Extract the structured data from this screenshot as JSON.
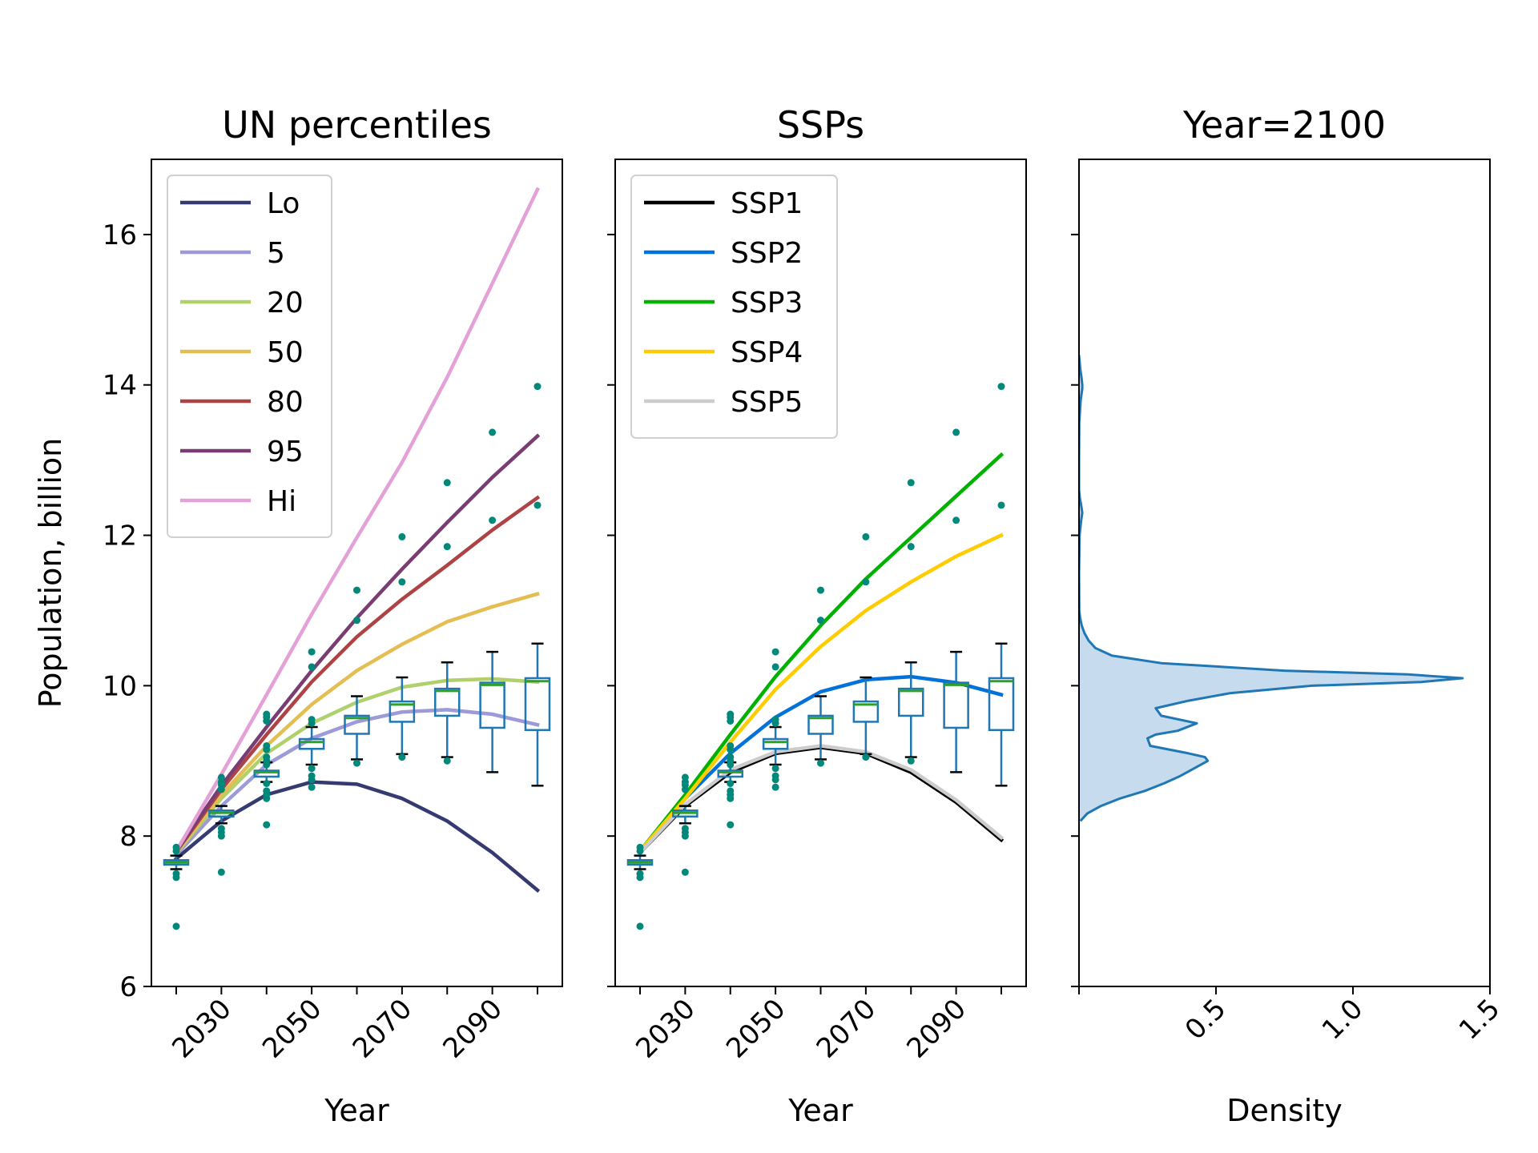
{
  "chart_data": [
    {
      "type": "line",
      "title": "UN percentiles",
      "xlabel": "Year",
      "ylabel": "Population, billion",
      "xlim": [
        2014.5,
        2105.5
      ],
      "ylim": [
        6,
        17
      ],
      "xticks": [
        2030,
        2050,
        2070,
        2090
      ],
      "yticks": [
        6,
        8,
        10,
        12,
        14,
        16
      ],
      "legend_position": "upper left",
      "x": [
        2020,
        2030,
        2040,
        2050,
        2060,
        2070,
        2080,
        2090,
        2100
      ],
      "series": [
        {
          "name": "Lo",
          "color": "#353a70",
          "values": [
            7.7,
            8.2,
            8.55,
            8.72,
            8.69,
            8.5,
            8.2,
            7.78,
            7.28
          ]
        },
        {
          "name": "5",
          "color": "#9c9ad8",
          "values": [
            7.75,
            8.4,
            8.95,
            9.3,
            9.52,
            9.65,
            9.68,
            9.62,
            9.48
          ]
        },
        {
          "name": "20",
          "color": "#b0d06c",
          "values": [
            7.77,
            8.5,
            9.1,
            9.5,
            9.78,
            9.98,
            10.07,
            10.09,
            10.05
          ]
        },
        {
          "name": "50",
          "color": "#e4be52",
          "values": [
            7.78,
            8.55,
            9.2,
            9.75,
            10.2,
            10.55,
            10.85,
            11.05,
            11.22
          ]
        },
        {
          "name": "80",
          "color": "#ad4344",
          "values": [
            7.79,
            8.62,
            9.35,
            10.05,
            10.65,
            11.15,
            11.6,
            12.07,
            12.5
          ]
        },
        {
          "name": "95",
          "color": "#7a3d73",
          "values": [
            7.8,
            8.67,
            9.45,
            10.2,
            10.9,
            11.55,
            12.17,
            12.77,
            13.32
          ]
        },
        {
          "name": "Hi",
          "color": "#e3a1d8",
          "values": [
            7.8,
            8.82,
            9.88,
            10.95,
            11.97,
            12.97,
            14.1,
            15.35,
            16.6
          ]
        }
      ],
      "boxes": [
        {
          "x": 2020,
          "whislo": 7.56,
          "q1": 7.62,
          "med": 7.65,
          "q3": 7.68,
          "whishi": 7.74
        },
        {
          "x": 2030,
          "whislo": 8.17,
          "q1": 8.26,
          "med": 8.31,
          "q3": 8.34,
          "whishi": 8.4
        },
        {
          "x": 2040,
          "whislo": 8.72,
          "q1": 8.79,
          "med": 8.85,
          "q3": 8.87,
          "whishi": 8.98
        },
        {
          "x": 2050,
          "whislo": 8.95,
          "q1": 9.16,
          "med": 9.25,
          "q3": 9.29,
          "whishi": 9.45
        },
        {
          "x": 2060,
          "whislo": 9.02,
          "q1": 9.36,
          "med": 9.57,
          "q3": 9.6,
          "whishi": 9.86
        },
        {
          "x": 2070,
          "whislo": 9.09,
          "q1": 9.52,
          "med": 9.75,
          "q3": 9.79,
          "whishi": 10.11
        },
        {
          "x": 2080,
          "whislo": 9.05,
          "q1": 9.6,
          "med": 9.93,
          "q3": 9.96,
          "whishi": 10.31
        },
        {
          "x": 2090,
          "whislo": 8.85,
          "q1": 9.44,
          "med": 10.01,
          "q3": 10.04,
          "whishi": 10.45
        },
        {
          "x": 2100,
          "whislo": 8.67,
          "q1": 9.41,
          "med": 10.06,
          "q3": 10.1,
          "whishi": 10.56
        }
      ],
      "outliers": [
        {
          "x": 2020,
          "y": [
            7.85,
            7.8,
            7.5,
            7.45,
            6.8
          ]
        },
        {
          "x": 2030,
          "y": [
            8.78,
            8.72,
            8.68,
            8.62,
            8.1,
            8.05,
            8.0,
            7.52
          ]
        },
        {
          "x": 2040,
          "y": [
            9.62,
            9.58,
            9.53,
            9.2,
            9.15,
            9.05,
            9.0,
            8.95,
            8.7,
            8.6,
            8.55,
            8.5,
            8.15
          ]
        },
        {
          "x": 2050,
          "y": [
            10.45,
            10.25,
            9.55,
            9.5,
            8.9,
            8.8,
            8.75,
            8.65
          ]
        },
        {
          "x": 2060,
          "y": [
            11.27,
            10.87,
            8.97
          ]
        },
        {
          "x": 2070,
          "y": [
            11.98,
            11.38,
            9.05
          ]
        },
        {
          "x": 2080,
          "y": [
            12.7,
            11.85,
            9.0
          ]
        },
        {
          "x": 2090,
          "y": [
            13.37,
            12.2
          ]
        },
        {
          "x": 2100,
          "y": [
            13.98,
            12.4
          ]
        }
      ]
    },
    {
      "type": "line",
      "title": "SSPs",
      "xlabel": "Year",
      "ylabel": "",
      "xlim": [
        2014.5,
        2105.5
      ],
      "ylim": [
        6,
        17
      ],
      "xticks": [
        2030,
        2050,
        2070,
        2090
      ],
      "legend_position": "upper left",
      "x": [
        2020,
        2030,
        2040,
        2050,
        2060,
        2070,
        2080,
        2090,
        2100
      ],
      "series": [
        {
          "name": "SSP1",
          "color": "#000000",
          "values": [
            7.78,
            8.4,
            8.85,
            9.1,
            9.18,
            9.1,
            8.85,
            8.45,
            7.95
          ]
        },
        {
          "name": "SSP2",
          "color": "#0072d9",
          "values": [
            7.79,
            8.5,
            9.1,
            9.58,
            9.92,
            10.08,
            10.12,
            10.04,
            9.88
          ]
        },
        {
          "name": "SSP3",
          "color": "#00b200",
          "values": [
            7.8,
            8.55,
            9.35,
            10.12,
            10.8,
            11.42,
            11.97,
            12.52,
            13.07
          ]
        },
        {
          "name": "SSP4",
          "color": "#ffcc00",
          "values": [
            7.8,
            8.5,
            9.25,
            9.95,
            10.52,
            11.0,
            11.38,
            11.72,
            12.0
          ]
        },
        {
          "name": "SSP5",
          "color": "#cccccc",
          "values": [
            7.78,
            8.42,
            8.88,
            9.12,
            9.2,
            9.12,
            8.88,
            8.48,
            7.98
          ]
        }
      ],
      "boxes": [
        {
          "x": 2020,
          "whislo": 7.56,
          "q1": 7.62,
          "med": 7.65,
          "q3": 7.68,
          "whishi": 7.74
        },
        {
          "x": 2030,
          "whislo": 8.17,
          "q1": 8.26,
          "med": 8.31,
          "q3": 8.34,
          "whishi": 8.4
        },
        {
          "x": 2040,
          "whislo": 8.72,
          "q1": 8.79,
          "med": 8.85,
          "q3": 8.87,
          "whishi": 8.98
        },
        {
          "x": 2050,
          "whislo": 8.95,
          "q1": 9.16,
          "med": 9.25,
          "q3": 9.29,
          "whishi": 9.45
        },
        {
          "x": 2060,
          "whislo": 9.02,
          "q1": 9.36,
          "med": 9.57,
          "q3": 9.6,
          "whishi": 9.86
        },
        {
          "x": 2070,
          "whislo": 9.09,
          "q1": 9.52,
          "med": 9.75,
          "q3": 9.79,
          "whishi": 10.11
        },
        {
          "x": 2080,
          "whislo": 9.05,
          "q1": 9.6,
          "med": 9.93,
          "q3": 9.96,
          "whishi": 10.31
        },
        {
          "x": 2090,
          "whislo": 8.85,
          "q1": 9.44,
          "med": 10.01,
          "q3": 10.04,
          "whishi": 10.45
        },
        {
          "x": 2100,
          "whislo": 8.67,
          "q1": 9.41,
          "med": 10.06,
          "q3": 10.1,
          "whishi": 10.56
        }
      ],
      "outliers": [
        {
          "x": 2020,
          "y": [
            7.85,
            7.8,
            7.5,
            7.45,
            6.8
          ]
        },
        {
          "x": 2030,
          "y": [
            8.78,
            8.72,
            8.68,
            8.62,
            8.1,
            8.05,
            8.0,
            7.52
          ]
        },
        {
          "x": 2040,
          "y": [
            9.62,
            9.58,
            9.53,
            9.2,
            9.15,
            9.05,
            9.0,
            8.95,
            8.7,
            8.6,
            8.55,
            8.5,
            8.15
          ]
        },
        {
          "x": 2050,
          "y": [
            10.45,
            10.25,
            9.55,
            9.5,
            8.9,
            8.8,
            8.75,
            8.65
          ]
        },
        {
          "x": 2060,
          "y": [
            11.27,
            10.87,
            8.97
          ]
        },
        {
          "x": 2070,
          "y": [
            11.98,
            11.38,
            9.05
          ]
        },
        {
          "x": 2080,
          "y": [
            12.7,
            11.85,
            9.0
          ]
        },
        {
          "x": 2090,
          "y": [
            13.37,
            12.2
          ]
        },
        {
          "x": 2100,
          "y": [
            13.98,
            12.4
          ]
        }
      ]
    },
    {
      "type": "area",
      "title": "Year=2100",
      "xlabel": "Density",
      "ylabel": "",
      "xlim": [
        0,
        1.5
      ],
      "ylim": [
        6,
        17
      ],
      "xticks": [
        0.5,
        1.0,
        1.5
      ],
      "xtick_labels": [
        "0.5",
        "1.0",
        "1.5"
      ],
      "fill_color": "#c6dbee",
      "line_color": "#1f77b4",
      "density": {
        "y": [
          8.2,
          8.3,
          8.4,
          8.5,
          8.6,
          8.7,
          8.8,
          8.9,
          9.0,
          9.05,
          9.1,
          9.2,
          9.3,
          9.35,
          9.4,
          9.5,
          9.6,
          9.7,
          9.8,
          9.9,
          10.0,
          10.05,
          10.1,
          10.15,
          10.2,
          10.3,
          10.4,
          10.5,
          10.6,
          10.7,
          10.8,
          10.9,
          11.0,
          11.5,
          12.0,
          12.2,
          12.3,
          12.4,
          12.5,
          12.6,
          13.0,
          13.5,
          13.8,
          13.95,
          14.0,
          14.1,
          14.2,
          14.4
        ],
        "density": [
          0.005,
          0.03,
          0.08,
          0.15,
          0.24,
          0.31,
          0.37,
          0.42,
          0.47,
          0.46,
          0.4,
          0.26,
          0.25,
          0.28,
          0.36,
          0.43,
          0.3,
          0.28,
          0.4,
          0.55,
          0.85,
          1.25,
          1.4,
          1.2,
          0.75,
          0.3,
          0.12,
          0.06,
          0.035,
          0.02,
          0.01,
          0.004,
          0.001,
          0.0,
          0.002,
          0.008,
          0.012,
          0.008,
          0.003,
          0.0,
          0.0,
          0.001,
          0.006,
          0.012,
          0.012,
          0.009,
          0.005,
          0.0
        ]
      }
    }
  ]
}
